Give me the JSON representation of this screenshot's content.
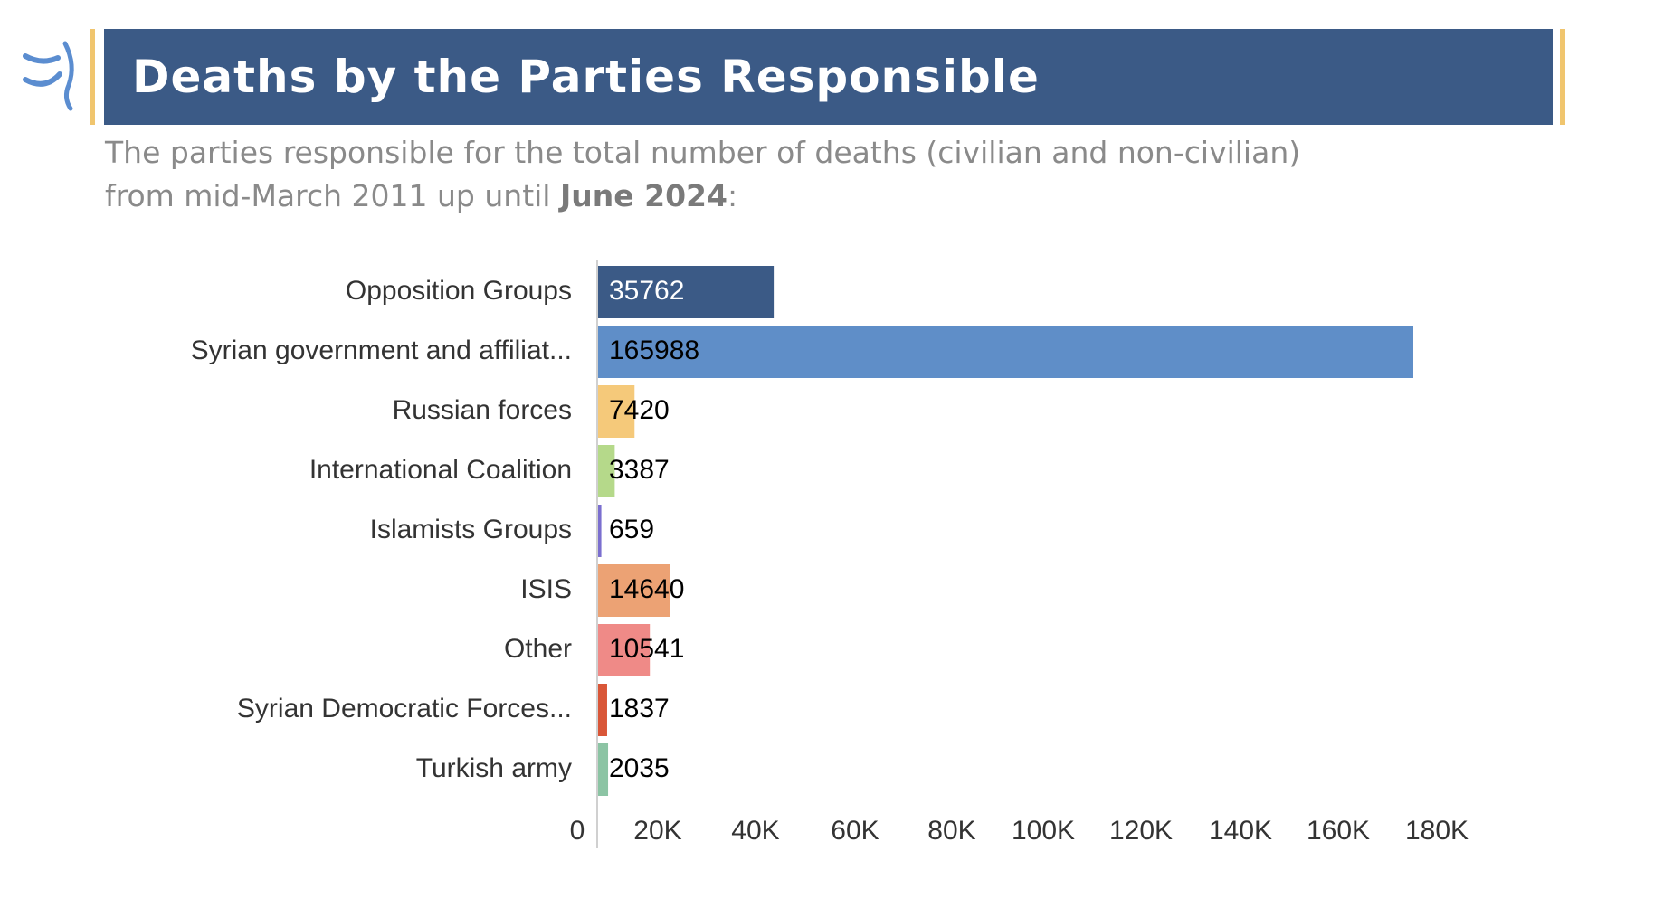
{
  "header": {
    "title": "Deaths by the Parties Responsible",
    "subtitle_line1": "The parties responsible for the total number of deaths (civilian and non-civilian)",
    "subtitle_line2_prefix": "from mid-March 2011 up until ",
    "subtitle_line2_bold": "June 2024",
    "subtitle_line2_suffix": ":"
  },
  "colors": {
    "title_bar": "#3b5a86",
    "accent": "#f0c56e",
    "logo": "#5b8dd0"
  },
  "chart_data": {
    "type": "bar",
    "orientation": "horizontal",
    "title": "",
    "xlabel": "",
    "ylabel": "",
    "xlim": [
      0,
      180000
    ],
    "grid": false,
    "categories": [
      "Opposition Groups",
      "Syrian government and affiliat...",
      "Russian forces",
      "International Coalition",
      "Islamists Groups",
      "ISIS",
      "Other",
      "Syrian Democratic Forces...",
      "Turkish army"
    ],
    "values": [
      35762,
      165988,
      7420,
      3387,
      659,
      14640,
      10541,
      1837,
      2035
    ],
    "bar_colors": [
      "#3b5a86",
      "#5f8ec8",
      "#f5c97a",
      "#b5d98a",
      "#7b6fcf",
      "#eca274",
      "#ef8a87",
      "#d95638",
      "#8cc4a4"
    ],
    "label_colors": [
      "#ffffff",
      "#000000",
      "#000000",
      "#000000",
      "#000000",
      "#000000",
      "#000000",
      "#000000",
      "#000000"
    ],
    "x_ticks": [
      "0",
      "20K",
      "40K",
      "60K",
      "80K",
      "100K",
      "120K",
      "140K",
      "160K",
      "180K"
    ]
  }
}
